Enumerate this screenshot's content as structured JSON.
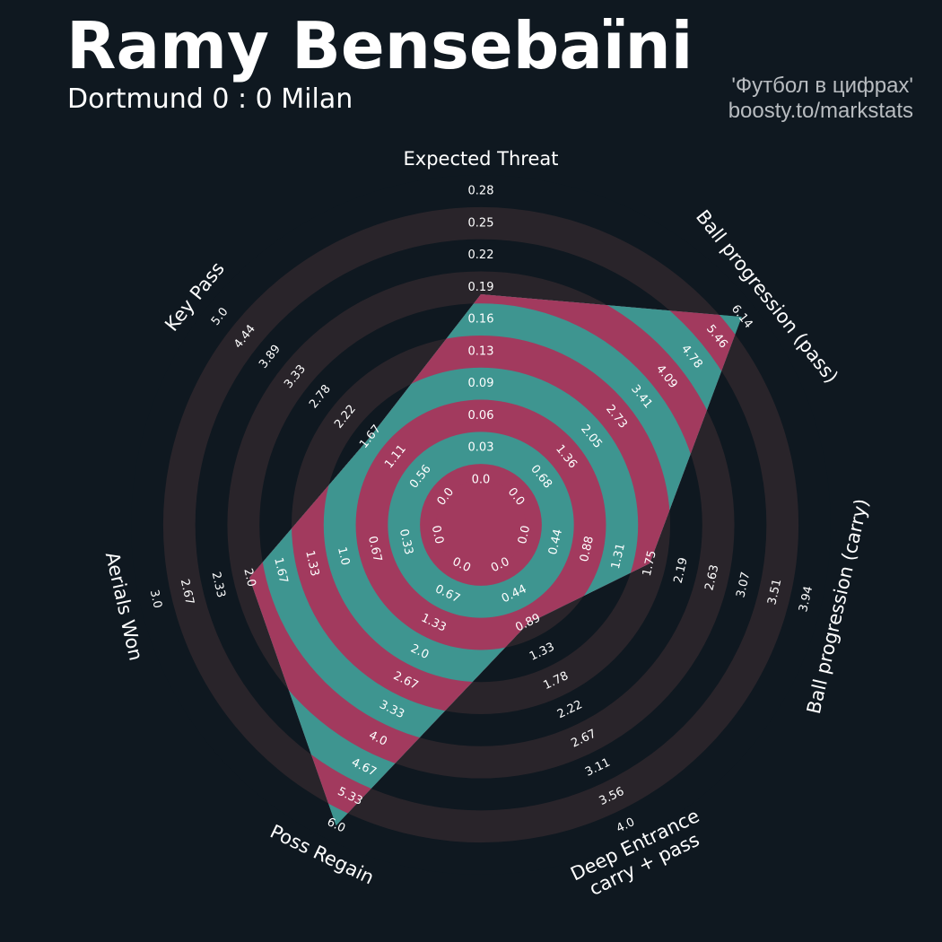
{
  "header": {
    "title": "Ramy Bensebaïni",
    "subtitle": "Dortmund 0 : 0 Milan",
    "credit_line1": "'Футбол в цифрах'",
    "credit_line2": "boosty.to/markstats"
  },
  "colors": {
    "background": "#0f1820",
    "ring_outer": "#29242a",
    "ring_inner_a": "#a23a5e",
    "ring_inner_b": "#0f1820",
    "player_fill": "#3e9590"
  },
  "chart_data": {
    "type": "radar",
    "params": [
      {
        "name": "Expected Threat",
        "lines": [
          "Expected Threat"
        ],
        "value": 0.18,
        "ticks": [
          "0.0",
          "0.03",
          "0.06",
          "0.09",
          "0.13",
          "0.16",
          "0.19",
          "0.22",
          "0.25",
          "0.28"
        ]
      },
      {
        "name": "Ball progression (pass)",
        "lines": [
          "Ball progression (pass)"
        ],
        "value": 6.14,
        "ticks": [
          "0.0",
          "0.68",
          "1.36",
          "2.05",
          "2.73",
          "3.41",
          "4.09",
          "4.78",
          "5.46",
          "6.14"
        ]
      },
      {
        "name": "Ball progression (carry)",
        "lines": [
          "Ball progression (carry)"
        ],
        "value": 1.75,
        "ticks": [
          "0.0",
          "0.44",
          "0.88",
          "1.31",
          "1.75",
          "2.19",
          "2.63",
          "3.07",
          "3.51",
          "3.94"
        ]
      },
      {
        "name": "Deep Entrance carry + pass",
        "lines": [
          "Deep Entrance",
          "carry + pass"
        ],
        "value": 0.89,
        "ticks": [
          "0.0",
          "0.44",
          "0.89",
          "1.33",
          "1.78",
          "2.22",
          "2.67",
          "3.11",
          "3.56",
          "4.0"
        ]
      },
      {
        "name": "Poss Regain",
        "lines": [
          "Poss Regain"
        ],
        "value": 6.0,
        "ticks": [
          "0.0",
          "0.67",
          "1.33",
          "2.0",
          "2.67",
          "3.33",
          "4.0",
          "4.67",
          "5.33",
          "6.0"
        ]
      },
      {
        "name": "Aerials Won",
        "lines": [
          "Aerials Won"
        ],
        "value": 2.0,
        "ticks": [
          "0.0",
          "0.33",
          "0.67",
          "1.0",
          "1.33",
          "1.67",
          "2.0",
          "2.33",
          "2.67",
          "3.0"
        ]
      },
      {
        "name": "Key Pass",
        "lines": [
          "Key Pass"
        ],
        "value": 1.67,
        "ticks": [
          "0.0",
          "0.56",
          "1.11",
          "1.67",
          "2.22",
          "2.78",
          "3.33",
          "3.89",
          "4.44",
          "5.0"
        ]
      }
    ]
  }
}
